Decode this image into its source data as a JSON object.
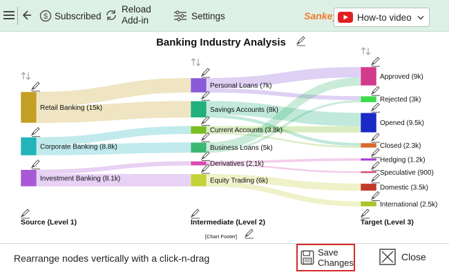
{
  "toolbar": {
    "subscribed_label": "Subscribed",
    "reload_label_line1": "Reload",
    "reload_label_line2": "Add-in",
    "settings_label": "Settings",
    "app_title": "Sankey Chart",
    "how_to_label": "How-to video"
  },
  "chart_data": {
    "type": "sankey",
    "title": "Banking Industry Analysis",
    "footer": "[Chart Footer]",
    "columns": [
      "Source (Level 1)",
      "Intermediate (Level 2)",
      "Target (Level 3)"
    ],
    "nodes": [
      {
        "id": "retail",
        "label": "Retail Banking (15k)",
        "value": 15,
        "level": 0,
        "color": "#c4a024"
      },
      {
        "id": "corporate",
        "label": "Corporate Banking (8.8k)",
        "value": 8.8,
        "level": 0,
        "color": "#22b4bb"
      },
      {
        "id": "investment",
        "label": "Investment Banking (8.1k)",
        "value": 8.1,
        "level": 0,
        "color": "#a85ad6"
      },
      {
        "id": "personal",
        "label": "Personal Loans (7k)",
        "value": 7,
        "level": 1,
        "color": "#8a5ad8"
      },
      {
        "id": "savings",
        "label": "Savings Accounts (8k)",
        "value": 8,
        "level": 1,
        "color": "#22b07c"
      },
      {
        "id": "current",
        "label": "Current Accounts (3.8k)",
        "value": 3.8,
        "level": 1,
        "color": "#7bbd24"
      },
      {
        "id": "business",
        "label": "Business Loans (5k)",
        "value": 5,
        "level": 1,
        "color": "#3cb872"
      },
      {
        "id": "derivatives",
        "label": "Derivatives (2.1k)",
        "value": 2.1,
        "level": 1,
        "color": "#d84ab2"
      },
      {
        "id": "equity",
        "label": "Equity Trading (6k)",
        "value": 6,
        "level": 1,
        "color": "#c4d23a"
      },
      {
        "id": "approved",
        "label": "Approved (9k)",
        "value": 9,
        "level": 2,
        "color": "#d23a8c"
      },
      {
        "id": "rejected",
        "label": "Rejected (3k)",
        "value": 3,
        "level": 2,
        "color": "#3cdc4c"
      },
      {
        "id": "opened",
        "label": "Opened (9.5k)",
        "value": 9.5,
        "level": 2,
        "color": "#1a2ac4"
      },
      {
        "id": "closed",
        "label": "Closed (2.3k)",
        "value": 2.3,
        "level": 2,
        "color": "#d86a2a"
      },
      {
        "id": "hedging",
        "label": "Hedging (1.2k)",
        "value": 1.2,
        "level": 2,
        "color": "#a83ad2"
      },
      {
        "id": "speculative",
        "label": "Speculative (900)",
        "value": 0.9,
        "level": 2,
        "color": "#d43a6a"
      },
      {
        "id": "domestic",
        "label": "Domestic (3.5k)",
        "value": 3.5,
        "level": 2,
        "color": "#c43a2a"
      },
      {
        "id": "international",
        "label": "International (2.5k)",
        "value": 2.5,
        "level": 2,
        "color": "#a8c42a"
      }
    ],
    "links": [
      {
        "source": "retail",
        "target": "personal",
        "value": 7
      },
      {
        "source": "retail",
        "target": "savings",
        "value": 8
      },
      {
        "source": "corporate",
        "target": "current",
        "value": 3.8
      },
      {
        "source": "corporate",
        "target": "business",
        "value": 5
      },
      {
        "source": "investment",
        "target": "derivatives",
        "value": 2.1
      },
      {
        "source": "investment",
        "target": "equity",
        "value": 6
      },
      {
        "source": "personal",
        "target": "approved",
        "value": 5
      },
      {
        "source": "personal",
        "target": "rejected",
        "value": 2
      },
      {
        "source": "savings",
        "target": "opened",
        "value": 6.5
      },
      {
        "source": "savings",
        "target": "closed",
        "value": 1.5
      },
      {
        "source": "current",
        "target": "opened",
        "value": 3
      },
      {
        "source": "current",
        "target": "closed",
        "value": 0.8
      },
      {
        "source": "business",
        "target": "approved",
        "value": 4
      },
      {
        "source": "business",
        "target": "rejected",
        "value": 1
      },
      {
        "source": "derivatives",
        "target": "hedging",
        "value": 1.2
      },
      {
        "source": "derivatives",
        "target": "speculative",
        "value": 0.9
      },
      {
        "source": "equity",
        "target": "domestic",
        "value": 3.5
      },
      {
        "source": "equity",
        "target": "international",
        "value": 2.5
      }
    ]
  },
  "footer": {
    "hint": "Rearrange nodes vertically with a click-n-drag",
    "save_line1": "Save",
    "save_line2": "Changes",
    "close_label": "Close"
  }
}
